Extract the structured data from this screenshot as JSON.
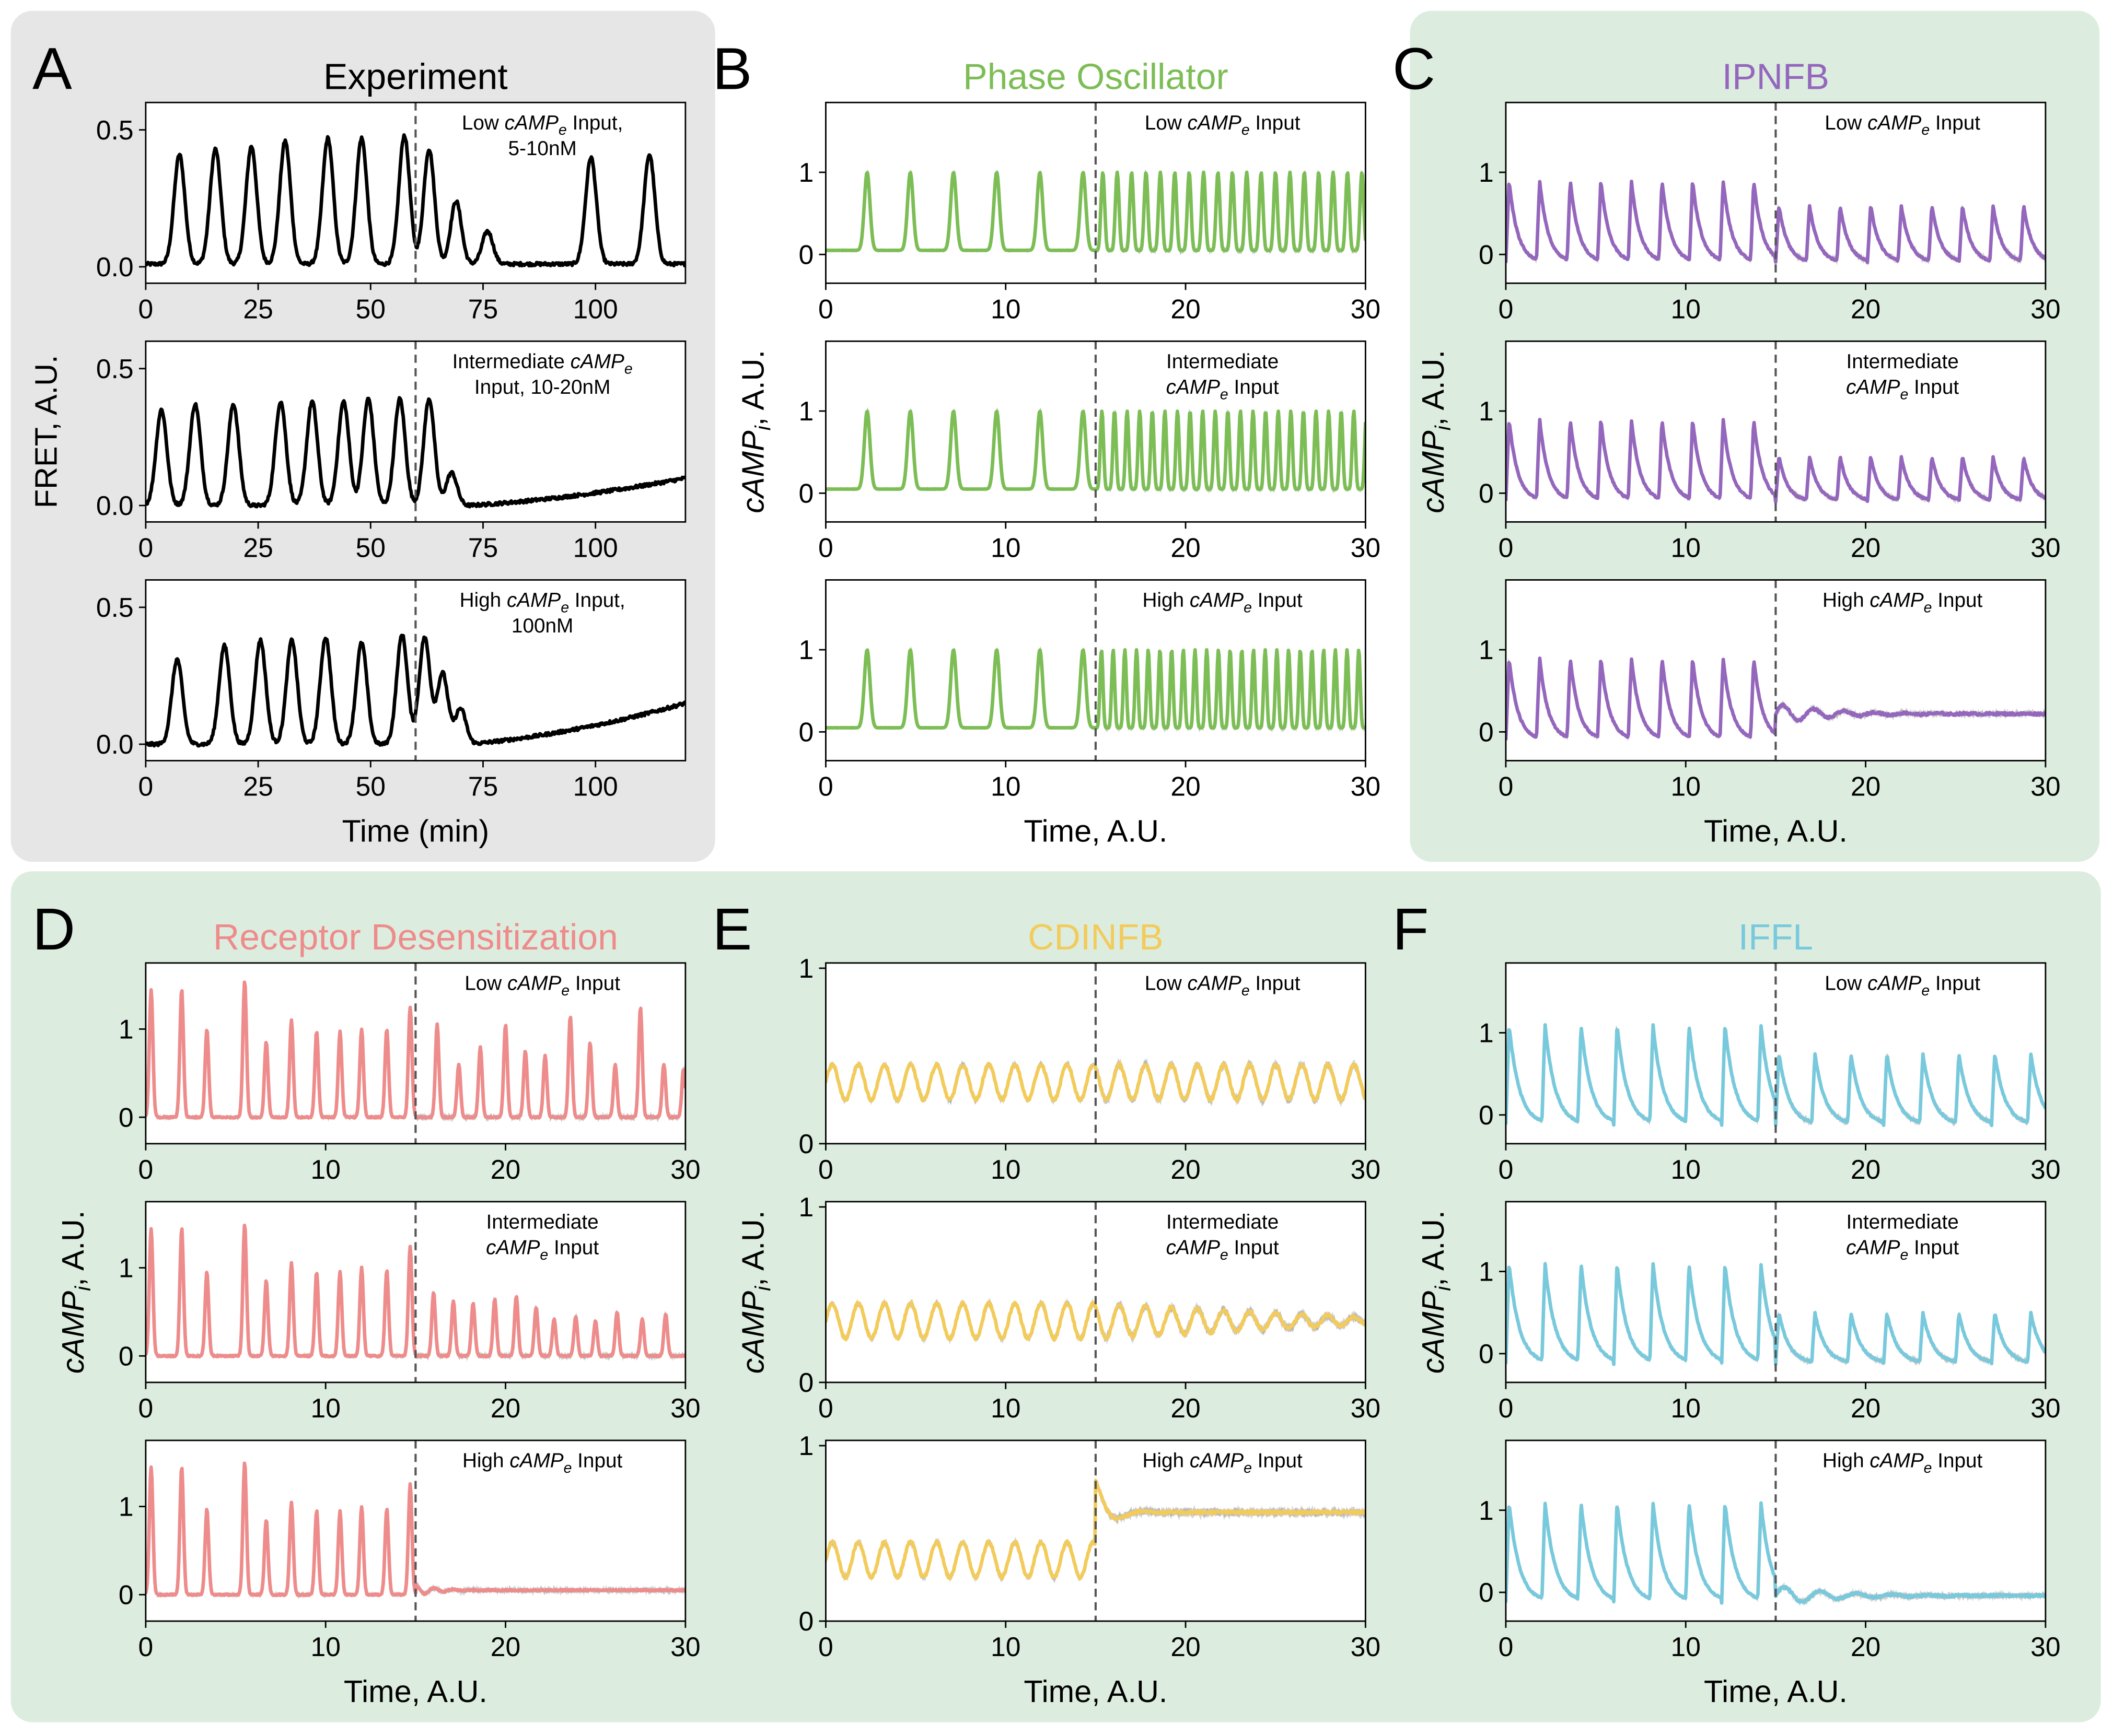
{
  "figure": {
    "panel_bg": {
      "grey": "#e6e6e6",
      "green": "#dceddf"
    },
    "panels": [
      {
        "letter": "A",
        "title": "Experiment",
        "color": "#000000",
        "ylabel": "FRET, A.U.",
        "xlabel": "Time (min)",
        "xlim": [
          0,
          120
        ],
        "xticks": [
          "0",
          "25",
          "50",
          "75",
          "100"
        ],
        "xtick_values": [
          0,
          25,
          50,
          75,
          100
        ],
        "ylim": [
          -0.06,
          0.6
        ],
        "yticks": [
          "0.0",
          "0.5"
        ],
        "ytick_values": [
          0,
          0.5
        ],
        "switch": 60,
        "subplots": [
          {
            "input_lines": [
              [
                "Low ",
                "cAMP",
                "e",
                " Input,"
              ],
              [
                "5-10nM"
              ]
            ]
          },
          {
            "input_lines": [
              [
                "Intermediate ",
                "cAMP",
                "e"
              ],
              [
                "Input, 10-20nM"
              ]
            ]
          },
          {
            "input_lines": [
              [
                "High ",
                "cAMP",
                "e",
                " Input,"
              ],
              [
                "100nM"
              ]
            ]
          }
        ]
      },
      {
        "letter": "B",
        "title": "Phase Oscillator",
        "color": "#7cbd55",
        "ylabel": "cAMPi, A.U.",
        "xlabel": "Time, A.U.",
        "xlim": [
          0,
          30
        ],
        "xticks": [
          "0",
          "10",
          "20",
          "30"
        ],
        "xtick_values": [
          0,
          10,
          20,
          30
        ],
        "ylim": [
          -0.35,
          1.85
        ],
        "yticks": [
          "0",
          "1"
        ],
        "ytick_values": [
          0,
          1
        ],
        "switch": 15,
        "subplots": [
          {
            "input_lines": [
              [
                "Low ",
                "cAMP",
                "e",
                " Input"
              ]
            ]
          },
          {
            "input_lines": [
              [
                "Intermediate"
              ],
              [
                "cAMP",
                "e",
                " Input"
              ]
            ]
          },
          {
            "input_lines": [
              [
                "High ",
                "cAMP",
                "e",
                " Input"
              ]
            ]
          }
        ]
      },
      {
        "letter": "C",
        "title": "IPNFB",
        "color": "#9467bd",
        "ylabel": "cAMPi, A.U.",
        "xlabel": "Time, A.U.",
        "xlim": [
          0,
          30
        ],
        "xticks": [
          "0",
          "10",
          "20",
          "30"
        ],
        "xtick_values": [
          0,
          10,
          20,
          30
        ],
        "ylim": [
          -0.35,
          1.85
        ],
        "yticks": [
          "0",
          "1"
        ],
        "ytick_values": [
          0,
          1
        ],
        "switch": 15,
        "subplots": [
          {
            "input_lines": [
              [
                "Low ",
                "cAMP",
                "e",
                " Input"
              ]
            ]
          },
          {
            "input_lines": [
              [
                "Intermediate"
              ],
              [
                "cAMP",
                "e",
                " Input"
              ]
            ]
          },
          {
            "input_lines": [
              [
                "High ",
                "cAMP",
                "e",
                " Input"
              ]
            ]
          }
        ]
      },
      {
        "letter": "D",
        "title": "Receptor Desensitization",
        "color": "#ee8b8b",
        "ylabel": "cAMPi, A.U.",
        "xlabel": "Time, A.U.",
        "xlim": [
          0,
          30
        ],
        "xticks": [
          "0",
          "10",
          "20",
          "30"
        ],
        "xtick_values": [
          0,
          10,
          20,
          30
        ],
        "ylim": [
          -0.3,
          1.75
        ],
        "yticks": [
          "0",
          "1"
        ],
        "ytick_values": [
          0,
          1
        ],
        "switch": 15,
        "subplots": [
          {
            "input_lines": [
              [
                "Low ",
                "cAMP",
                "e",
                " Input"
              ]
            ]
          },
          {
            "input_lines": [
              [
                "Intermediate"
              ],
              [
                "cAMP",
                "e",
                " Input"
              ]
            ]
          },
          {
            "input_lines": [
              [
                "High ",
                "cAMP",
                "e",
                " Input"
              ]
            ]
          }
        ]
      },
      {
        "letter": "E",
        "title": "CDINFB",
        "color": "#f2cb5b",
        "ylabel": "cAMPi, A.U.",
        "xlabel": "Time, A.U.",
        "xlim": [
          0,
          30
        ],
        "xticks": [
          "0",
          "10",
          "20",
          "30"
        ],
        "xtick_values": [
          0,
          10,
          20,
          30
        ],
        "ylim": [
          0,
          1.03
        ],
        "yticks": [
          "0",
          "1"
        ],
        "ytick_values": [
          0,
          1
        ],
        "switch": 15,
        "subplots": [
          {
            "input_lines": [
              [
                "Low ",
                "cAMP",
                "e",
                " Input"
              ]
            ]
          },
          {
            "input_lines": [
              [
                "Intermediate"
              ],
              [
                "cAMP",
                "e",
                " Input"
              ]
            ]
          },
          {
            "input_lines": [
              [
                "High ",
                "cAMP",
                "e",
                " Input"
              ]
            ]
          }
        ]
      },
      {
        "letter": "F",
        "title": "IFFL",
        "color": "#79c9dc",
        "ylabel": "cAMPi, A.U.",
        "xlabel": "Time, A.U.",
        "xlim": [
          0,
          30
        ],
        "xticks": [
          "0",
          "10",
          "20",
          "30"
        ],
        "xtick_values": [
          0,
          10,
          20,
          30
        ],
        "ylim": [
          -0.35,
          1.85
        ],
        "yticks": [
          "0",
          "1"
        ],
        "ytick_values": [
          0,
          1
        ],
        "switch": 15,
        "subplots": [
          {
            "input_lines": [
              [
                "Low ",
                "cAMP",
                "e",
                " Input"
              ]
            ]
          },
          {
            "input_lines": [
              [
                "Intermediate"
              ],
              [
                "cAMP",
                "e",
                " Input"
              ]
            ]
          },
          {
            "input_lines": [
              [
                "High ",
                "cAMP",
                "e",
                " Input"
              ]
            ]
          }
        ]
      }
    ]
  },
  "chart_data": [
    {
      "type": "line",
      "panel": "A",
      "title": "Experiment",
      "condition": "Low cAMPe Input, 5-10nM",
      "xlabel": "Time (min)",
      "ylabel": "FRET, A.U.",
      "xlim": [
        0,
        120
      ],
      "ylim": [
        -0.06,
        0.6
      ],
      "switch_x": 60,
      "peaks_x": [
        7.5,
        15.5,
        23.5,
        31,
        40.5,
        48,
        57.5,
        63,
        69,
        76,
        99,
        112
      ],
      "peaks_y": [
        0.41,
        0.43,
        0.44,
        0.46,
        0.47,
        0.47,
        0.48,
        0.43,
        0.24,
        0.13,
        0.4,
        0.41
      ],
      "baseline": 0.01
    },
    {
      "type": "line",
      "panel": "A",
      "title": "Experiment",
      "condition": "Intermediate cAMPe Input, 10-20nM",
      "xlabel": "Time (min)",
      "ylabel": "FRET, A.U.",
      "xlim": [
        0,
        120
      ],
      "ylim": [
        -0.06,
        0.6
      ],
      "switch_x": 60,
      "peaks_x": [
        3.5,
        11,
        19.5,
        30,
        37,
        44,
        49.5,
        56.5,
        63,
        68
      ],
      "peaks_y": [
        0.35,
        0.37,
        0.37,
        0.38,
        0.38,
        0.38,
        0.39,
        0.39,
        0.39,
        0.12
      ],
      "baseline": 0.0,
      "final_drift": 0.1
    },
    {
      "type": "line",
      "panel": "A",
      "title": "Experiment",
      "condition": "High cAMPe Input, 100nM",
      "xlabel": "Time (min)",
      "ylabel": "FRET, A.U.",
      "xlim": [
        0,
        120
      ],
      "ylim": [
        -0.06,
        0.6
      ],
      "switch_x": 60,
      "peaks_x": [
        7,
        17.5,
        25.5,
        32.5,
        40,
        48,
        57,
        62,
        66,
        70
      ],
      "peaks_y": [
        0.31,
        0.36,
        0.38,
        0.38,
        0.39,
        0.37,
        0.4,
        0.39,
        0.26,
        0.13
      ],
      "baseline": 0.0,
      "final_drift": 0.15
    },
    {
      "type": "line",
      "panel": "B",
      "title": "Phase Oscillator",
      "condition": "Low cAMPe Input",
      "xlabel": "Time, A.U.",
      "ylabel": "cAMPi, A.U.",
      "xlim": [
        0,
        30
      ],
      "ylim": [
        -0.35,
        1.85
      ],
      "switch_x": 15,
      "peaks_x_before": [
        2.3,
        4.7,
        7.1,
        9.5,
        11.9,
        14.3
      ],
      "period_after": 0.8,
      "peak_height": 1.0,
      "trough": 0.05
    },
    {
      "type": "line",
      "panel": "B",
      "title": "Phase Oscillator",
      "condition": "Intermediate cAMPe Input",
      "xlabel": "Time, A.U.",
      "ylabel": "cAMPi, A.U.",
      "xlim": [
        0,
        30
      ],
      "ylim": [
        -0.35,
        1.85
      ],
      "switch_x": 15,
      "peaks_x_before": [
        2.3,
        4.7,
        7.1,
        9.5,
        11.9,
        14.3
      ],
      "period_after": 0.7,
      "peak_height": 1.0,
      "trough": 0.05
    },
    {
      "type": "line",
      "panel": "B",
      "title": "Phase Oscillator",
      "condition": "High cAMPe Input",
      "xlabel": "Time, A.U.",
      "ylabel": "cAMPi, A.U.",
      "xlim": [
        0,
        30
      ],
      "ylim": [
        -0.35,
        1.85
      ],
      "switch_x": 15,
      "peaks_x_before": [
        2.3,
        4.7,
        7.1,
        9.5,
        11.9,
        14.3
      ],
      "period_after": 0.65,
      "peak_height": 1.0,
      "trough": 0.05
    },
    {
      "type": "line",
      "panel": "C",
      "title": "IPNFB",
      "condition": "Low cAMPe Input",
      "xlabel": "Time, A.U.",
      "ylabel": "cAMPi, A.U.",
      "xlim": [
        0,
        30
      ],
      "ylim": [
        -0.35,
        1.85
      ],
      "switch_x": 15,
      "period": 1.7,
      "peak_before": 0.9,
      "peak_after": 0.6,
      "trough": -0.1
    },
    {
      "type": "line",
      "panel": "C",
      "title": "IPNFB",
      "condition": "Intermediate cAMPe Input",
      "xlabel": "Time, A.U.",
      "ylabel": "cAMPi, A.U.",
      "xlim": [
        0,
        30
      ],
      "ylim": [
        -0.35,
        1.85
      ],
      "switch_x": 15,
      "period": 1.7,
      "peak_before": 0.9,
      "peak_after": 0.45,
      "trough": -0.1
    },
    {
      "type": "line",
      "panel": "C",
      "title": "IPNFB",
      "condition": "High cAMPe Input",
      "xlabel": "Time, A.U.",
      "ylabel": "cAMPi, A.U.",
      "xlim": [
        0,
        30
      ],
      "ylim": [
        -0.35,
        1.85
      ],
      "switch_x": 15,
      "period": 1.7,
      "peak_before": 0.9,
      "steady_after": 0.22,
      "trough": -0.1
    },
    {
      "type": "line",
      "panel": "D",
      "title": "Receptor Desensitization",
      "condition": "Low cAMPe Input",
      "xlabel": "Time, A.U.",
      "ylabel": "cAMPi, A.U.",
      "xlim": [
        0,
        30
      ],
      "ylim": [
        -0.3,
        1.75
      ],
      "switch_x": 15,
      "peaks_x": [
        0.3,
        2.0,
        3.4,
        5.5,
        6.7,
        8.1,
        9.5,
        10.8,
        12.0,
        13.4,
        14.7,
        16.2,
        17.4,
        18.6,
        20.0,
        21.1,
        22.2,
        23.6,
        24.7,
        26.1,
        27.5,
        28.8,
        29.9
      ],
      "peaks_y": [
        1.45,
        1.45,
        1.0,
        1.55,
        0.85,
        1.1,
        0.97,
        0.97,
        1.0,
        1.0,
        1.25,
        1.05,
        0.6,
        0.8,
        1.05,
        0.75,
        0.7,
        1.15,
        0.85,
        0.6,
        1.25,
        0.6,
        0.55
      ],
      "baseline": 0.0
    },
    {
      "type": "line",
      "panel": "D",
      "title": "Receptor Desensitization",
      "condition": "Intermediate cAMPe Input",
      "xlabel": "Time, A.U.",
      "ylabel": "cAMPi, A.U.",
      "xlim": [
        0,
        30
      ],
      "ylim": [
        -0.3,
        1.75
      ],
      "switch_x": 15,
      "peaks_x": [
        0.3,
        2.0,
        3.4,
        5.5,
        6.7,
        8.1,
        9.5,
        10.8,
        12.0,
        13.4,
        14.7,
        16.0,
        17.1,
        18.2,
        19.4,
        20.6,
        21.7,
        22.7,
        23.9,
        25.0,
        26.2,
        27.6,
        28.9
      ],
      "peaks_y": [
        1.45,
        1.45,
        0.95,
        1.5,
        0.85,
        1.05,
        0.95,
        0.95,
        1.0,
        0.97,
        1.25,
        0.72,
        0.62,
        0.6,
        0.65,
        0.68,
        0.55,
        0.42,
        0.45,
        0.4,
        0.5,
        0.42,
        0.48
      ],
      "baseline": 0.0
    },
    {
      "type": "line",
      "panel": "D",
      "title": "Receptor Desensitization",
      "condition": "High cAMPe Input",
      "xlabel": "Time, A.U.",
      "ylabel": "cAMPi, A.U.",
      "xlim": [
        0,
        30
      ],
      "ylim": [
        -0.3,
        1.75
      ],
      "switch_x": 15,
      "peaks_x": [
        0.3,
        2.0,
        3.4,
        5.5,
        6.7,
        8.1,
        9.5,
        10.8,
        12.0,
        13.4,
        14.7
      ],
      "peaks_y": [
        1.45,
        1.45,
        0.97,
        1.5,
        0.85,
        1.05,
        0.95,
        0.95,
        1.0,
        0.97,
        1.25
      ],
      "baseline": 0.0,
      "steady_after": 0.05
    },
    {
      "type": "line",
      "panel": "E",
      "title": "CDINFB",
      "condition": "Low cAMPe Input",
      "xlabel": "Time, A.U.",
      "ylabel": "cAMPi, A.U.",
      "xlim": [
        0,
        30
      ],
      "ylim": [
        0,
        1.03
      ],
      "switch_x": 15,
      "mean": 0.35,
      "amplitude": 0.1,
      "period": 1.45
    },
    {
      "type": "line",
      "panel": "E",
      "title": "CDINFB",
      "condition": "Intermediate cAMPe Input",
      "xlabel": "Time, A.U.",
      "ylabel": "cAMPi, A.U.",
      "xlim": [
        0,
        30
      ],
      "ylim": [
        0,
        1.03
      ],
      "switch_x": 15,
      "mean": 0.35,
      "amplitude": 0.1,
      "period": 1.45,
      "amplitude_end": 0.02
    },
    {
      "type": "line",
      "panel": "E",
      "title": "CDINFB",
      "condition": "High cAMPe Input",
      "xlabel": "Time, A.U.",
      "ylabel": "cAMPi, A.U.",
      "xlim": [
        0,
        30
      ],
      "ylim": [
        0,
        1.03
      ],
      "switch_x": 15,
      "mean": 0.35,
      "amplitude": 0.1,
      "period": 1.45,
      "overshoot": 0.8,
      "steady_after": 0.62
    },
    {
      "type": "line",
      "panel": "F",
      "title": "IFFL",
      "condition": "Low cAMPe Input",
      "xlabel": "Time, A.U.",
      "ylabel": "cAMPi, A.U.",
      "xlim": [
        0,
        30
      ],
      "ylim": [
        -0.35,
        1.85
      ],
      "switch_x": 15,
      "period": 2.0,
      "peak_before": 1.1,
      "peak_after": 0.75,
      "trough": -0.12
    },
    {
      "type": "line",
      "panel": "F",
      "title": "IFFL",
      "condition": "Intermediate cAMPe Input",
      "xlabel": "Time, A.U.",
      "ylabel": "cAMPi, A.U.",
      "xlim": [
        0,
        30
      ],
      "ylim": [
        -0.35,
        1.85
      ],
      "switch_x": 15,
      "period": 2.0,
      "peak_before": 1.1,
      "peak_after": 0.5,
      "trough": -0.12
    },
    {
      "type": "line",
      "panel": "F",
      "title": "IFFL",
      "condition": "High cAMPe Input",
      "xlabel": "Time, A.U.",
      "ylabel": "cAMPi, A.U.",
      "xlim": [
        0,
        30
      ],
      "ylim": [
        -0.35,
        1.85
      ],
      "switch_x": 15,
      "period": 2.0,
      "peak_before": 1.1,
      "steady_after": -0.04,
      "trough": -0.12
    }
  ]
}
